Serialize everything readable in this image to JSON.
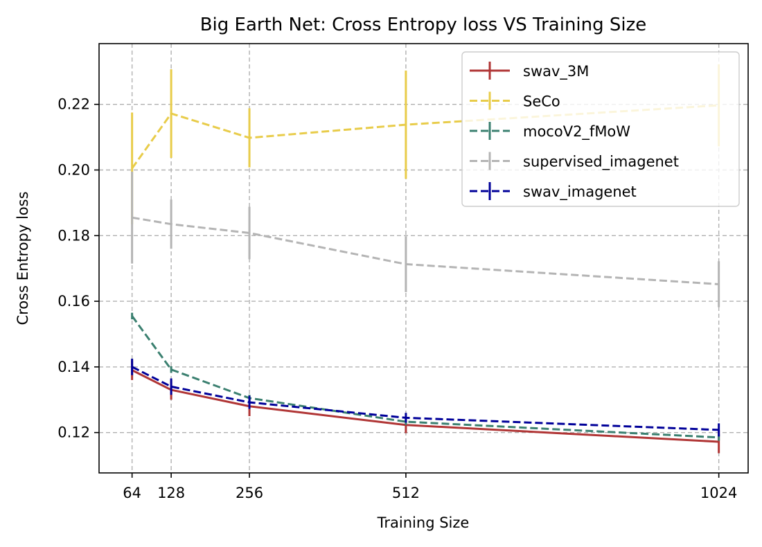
{
  "chart_data": {
    "type": "line",
    "title": "Big Earth Net: Cross Entropy loss VS Training Size",
    "xlabel": "Training Size",
    "ylabel": "Cross Entropy loss",
    "x": [
      64,
      128,
      256,
      512,
      1024
    ],
    "x_tick_labels": [
      "64",
      "128",
      "256",
      "512",
      "1024"
    ],
    "xlim": [
      10,
      1072
    ],
    "ylim": [
      0.1077,
      0.2385
    ],
    "y_ticks": [
      0.12,
      0.14,
      0.16,
      0.18,
      0.2,
      0.22
    ],
    "y_tick_labels": [
      "0.12",
      "0.14",
      "0.16",
      "0.18",
      "0.20",
      "0.22"
    ],
    "grid": true,
    "legend_position": "top-right",
    "series": [
      {
        "name": "swav_3M",
        "color": "#b03535",
        "dash": "solid",
        "values": [
          0.139,
          0.133,
          0.128,
          0.1223,
          0.1172
        ],
        "errors": [
          0.003,
          0.003,
          0.003,
          0.0025,
          0.0035
        ]
      },
      {
        "name": "SeCo",
        "color": "#e8cc4a",
        "dash": "dashed",
        "values": [
          0.2005,
          0.2172,
          0.2098,
          0.2138,
          0.2197
        ],
        "errors": [
          0.017,
          0.0135,
          0.009,
          0.0165,
          0.0125
        ]
      },
      {
        "name": "mocoV2_fMoW",
        "color": "#3b8070",
        "dash": "dashed",
        "values": [
          0.1555,
          0.1392,
          0.1305,
          0.1233,
          0.1185
        ],
        "errors": [
          0.001,
          0.001,
          0.001,
          0.001,
          0.001
        ]
      },
      {
        "name": "supervised_imagenet",
        "color": "#b4b4b4",
        "dash": "dashed",
        "values": [
          0.1855,
          0.1835,
          0.1808,
          0.1713,
          0.1652
        ],
        "errors": [
          0.014,
          0.0075,
          0.008,
          0.0085,
          0.007
        ]
      },
      {
        "name": "swav_imagenet",
        "color": "#000099",
        "dash": "dashed",
        "values": [
          0.14,
          0.134,
          0.1292,
          0.1245,
          0.1208
        ],
        "errors": [
          0.0025,
          0.0025,
          0.002,
          0.0015,
          0.002
        ]
      }
    ]
  }
}
